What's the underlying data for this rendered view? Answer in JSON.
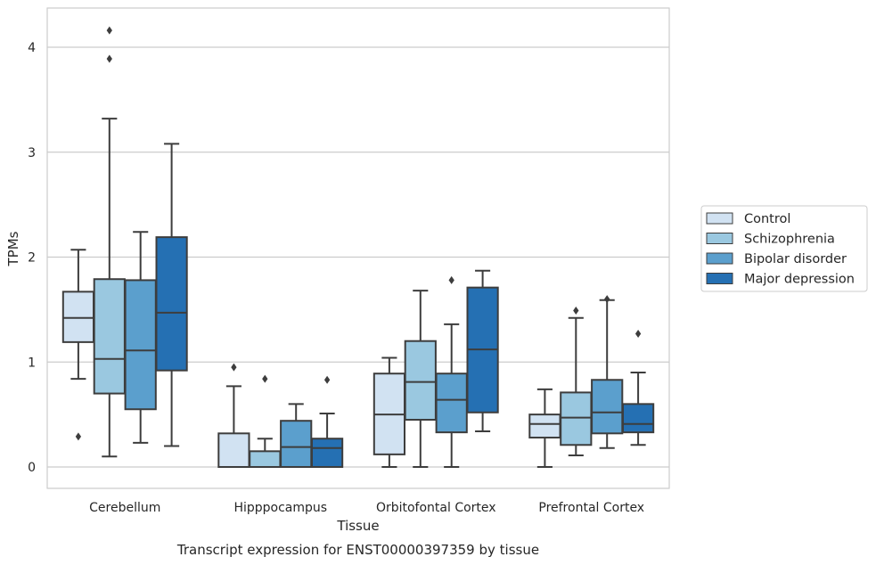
{
  "chart_data": {
    "type": "boxplot",
    "title": "Transcript expression for ENST00000397359 by tissue",
    "xlabel": "Tissue",
    "ylabel": "TPMs",
    "ylim": [
      -0.2,
      4.38
    ],
    "yticks": [
      0,
      1,
      2,
      3,
      4
    ],
    "grid": "horizontal",
    "legend_position": "right",
    "categories": [
      "Cerebellum",
      "Hipppocampus",
      "Orbitofontal Cortex",
      "Prefrontal Cortex"
    ],
    "series": [
      {
        "name": "Control",
        "color": "#d1e2f2",
        "boxes": [
          {
            "whislo": 0.84,
            "q1": 1.19,
            "med": 1.42,
            "q3": 1.67,
            "whishi": 2.07,
            "fliers": [
              0.29
            ]
          },
          {
            "whislo": 0.0,
            "q1": 0.0,
            "med": 0.0,
            "q3": 0.32,
            "whishi": 0.77,
            "fliers": [
              0.95
            ]
          },
          {
            "whislo": 0.0,
            "q1": 0.12,
            "med": 0.5,
            "q3": 0.89,
            "whishi": 1.04,
            "fliers": []
          },
          {
            "whislo": 0.0,
            "q1": 0.28,
            "med": 0.41,
            "q3": 0.5,
            "whishi": 0.74,
            "fliers": []
          }
        ]
      },
      {
        "name": "Schizophrenia",
        "color": "#9ac8e0",
        "boxes": [
          {
            "whislo": 0.1,
            "q1": 0.7,
            "med": 1.03,
            "q3": 1.79,
            "whishi": 3.32,
            "fliers": [
              3.89,
              4.16
            ]
          },
          {
            "whislo": 0.0,
            "q1": 0.0,
            "med": 0.0,
            "q3": 0.15,
            "whishi": 0.27,
            "fliers": [
              0.84
            ]
          },
          {
            "whislo": 0.0,
            "q1": 0.45,
            "med": 0.81,
            "q3": 1.2,
            "whishi": 1.68,
            "fliers": []
          },
          {
            "whislo": 0.11,
            "q1": 0.21,
            "med": 0.47,
            "q3": 0.71,
            "whishi": 1.42,
            "fliers": [
              1.49
            ]
          }
        ]
      },
      {
        "name": "Bipolar disorder",
        "color": "#5b9fcd",
        "boxes": [
          {
            "whislo": 0.23,
            "q1": 0.55,
            "med": 1.11,
            "q3": 1.78,
            "whishi": 2.24,
            "fliers": []
          },
          {
            "whislo": 0.0,
            "q1": 0.0,
            "med": 0.19,
            "q3": 0.44,
            "whishi": 0.6,
            "fliers": []
          },
          {
            "whislo": 0.0,
            "q1": 0.33,
            "med": 0.64,
            "q3": 0.89,
            "whishi": 1.36,
            "fliers": [
              1.78
            ]
          },
          {
            "whislo": 0.18,
            "q1": 0.32,
            "med": 0.52,
            "q3": 0.83,
            "whishi": 1.59,
            "fliers": [
              1.6
            ]
          }
        ]
      },
      {
        "name": "Major depression",
        "color": "#2570b3",
        "boxes": [
          {
            "whislo": 0.2,
            "q1": 0.92,
            "med": 1.47,
            "q3": 2.19,
            "whishi": 3.08,
            "fliers": []
          },
          {
            "whislo": 0.0,
            "q1": 0.0,
            "med": 0.18,
            "q3": 0.27,
            "whishi": 0.51,
            "fliers": [
              0.83
            ]
          },
          {
            "whislo": 0.34,
            "q1": 0.52,
            "med": 1.12,
            "q3": 1.71,
            "whishi": 1.87,
            "fliers": []
          },
          {
            "whislo": 0.21,
            "q1": 0.33,
            "med": 0.41,
            "q3": 0.6,
            "whishi": 0.9,
            "fliers": [
              1.27
            ]
          }
        ]
      }
    ]
  }
}
